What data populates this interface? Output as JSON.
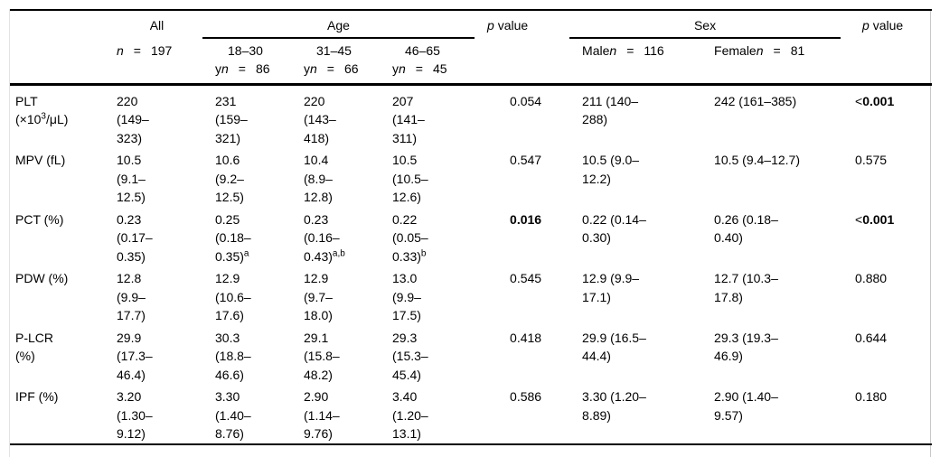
{
  "table": {
    "header": {
      "all": {
        "label": "All",
        "n_label": "n",
        "n_value": "197"
      },
      "age": {
        "label": "Age",
        "groups": [
          {
            "range": "18–30",
            "unit": "y",
            "n_label": "n",
            "n_value": "86"
          },
          {
            "range": "31–45",
            "unit": "y",
            "n_label": "n",
            "n_value": "66"
          },
          {
            "range": "46–65",
            "unit": "y",
            "n_label": "n",
            "n_value": "45"
          }
        ]
      },
      "p_age": {
        "symbol": "p",
        "text": "value"
      },
      "sex": {
        "label": "Sex",
        "groups": [
          {
            "name": "Male",
            "n_label": "n",
            "n_value": "116"
          },
          {
            "name": "Female",
            "n_label": "n",
            "n_value": "81"
          }
        ]
      },
      "p_sex": {
        "symbol": "p",
        "text": "value"
      }
    },
    "rows": [
      {
        "id": "plt",
        "param": [
          "PLT",
          "(×10^{3}/μL)"
        ],
        "all": [
          "220",
          "(149–",
          "323)"
        ],
        "age_18_30": [
          "231",
          "(159–",
          "321)"
        ],
        "age_31_45": [
          "220",
          "(143–",
          "418)"
        ],
        "age_46_65": [
          "207",
          "(141–",
          "311)"
        ],
        "p_age": "0.054",
        "male": [
          "211 (140–",
          "288)"
        ],
        "female": [
          "242 (161–385)"
        ],
        "p_sex": "<**0.001**"
      },
      {
        "id": "mpv",
        "param": [
          "MPV (fL)"
        ],
        "all": [
          "10.5",
          "(9.1–",
          "12.5)"
        ],
        "age_18_30": [
          "10.6",
          "(9.2–",
          "12.5)"
        ],
        "age_31_45": [
          "10.4",
          "(8.9–",
          "12.8)"
        ],
        "age_46_65": [
          "10.5",
          "(10.5–",
          "12.6)"
        ],
        "p_age": "0.547",
        "male": [
          "10.5 (9.0–",
          "12.2)"
        ],
        "female": [
          "10.5 (9.4–12.7)"
        ],
        "p_sex": "0.575"
      },
      {
        "id": "pct",
        "param": [
          "PCT (%)"
        ],
        "all": [
          "0.23",
          "(0.17–",
          "0.35)"
        ],
        "age_18_30": [
          "0.25",
          "(0.18–",
          "0.35)^{a}"
        ],
        "age_31_45": [
          "0.23",
          "(0.16–",
          "0.43)^{a,b}"
        ],
        "age_46_65": [
          "0.22",
          "(0.05–",
          "0.33)^{b}"
        ],
        "p_age": "**0.016**",
        "male": [
          "0.22 (0.14–",
          "0.30)"
        ],
        "female": [
          "0.26 (0.18–",
          "0.40)"
        ],
        "p_sex": "<**0.001**"
      },
      {
        "id": "pdw",
        "param": [
          "PDW (%)"
        ],
        "all": [
          "12.8",
          "(9.9–",
          "17.7)"
        ],
        "age_18_30": [
          "12.9",
          "(10.6–",
          "17.6)"
        ],
        "age_31_45": [
          "12.9",
          "(9.7–",
          "18.0)"
        ],
        "age_46_65": [
          "13.0",
          "(9.9–",
          "17.5)"
        ],
        "p_age": "0.545",
        "male": [
          "12.9 (9.9–",
          "17.1)"
        ],
        "female": [
          "12.7 (10.3–",
          "17.8)"
        ],
        "p_sex": "0.880"
      },
      {
        "id": "plcr",
        "param": [
          "P-LCR",
          "(%)"
        ],
        "all": [
          "29.9",
          "(17.3–",
          "46.4)"
        ],
        "age_18_30": [
          "30.3",
          "(18.8–",
          "46.6)"
        ],
        "age_31_45": [
          "29.1",
          "(15.8–",
          "48.2)"
        ],
        "age_46_65": [
          "29.3",
          "(15.3–",
          "45.4)"
        ],
        "p_age": "0.418",
        "male": [
          "29.9 (16.5–",
          "44.4)"
        ],
        "female": [
          "29.3 (19.3–",
          "46.9)"
        ],
        "p_sex": "0.644"
      },
      {
        "id": "ipf",
        "param": [
          "IPF (%)"
        ],
        "all": [
          "3.20",
          "(1.30–",
          "9.12)"
        ],
        "age_18_30": [
          "3.30",
          "(1.40–",
          "8.76)"
        ],
        "age_31_45": [
          "2.90",
          "(1.14–",
          "9.76)"
        ],
        "age_46_65": [
          "3.40",
          "(1.20–",
          "13.1)"
        ],
        "p_age": "0.586",
        "male": [
          "3.30 (1.20–",
          "8.89)"
        ],
        "female": [
          "2.90 (1.40–",
          "9.57)"
        ],
        "p_sex": "0.180"
      }
    ]
  }
}
